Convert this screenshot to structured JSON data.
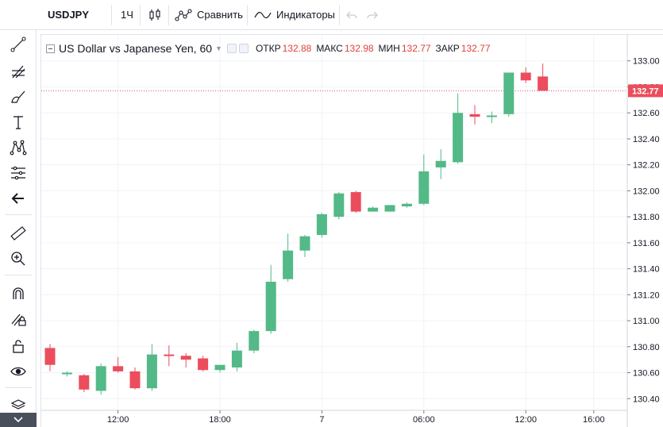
{
  "toolbar": {
    "symbol": "USDJPY",
    "interval": "1Ч",
    "compare_label": "Сравнить",
    "indicators_label": "Индикаторы"
  },
  "legend": {
    "title": "US Dollar vs Japanese Yen, 60",
    "open_label": "ОТКР",
    "open_value": "132.88",
    "high_label": "МАКС",
    "high_value": "132.98",
    "low_label": "МИН",
    "low_value": "132.77",
    "close_label": "ЗАКР",
    "close_value": "132.77"
  },
  "colors": {
    "up": "#53b987",
    "down": "#eb4d5c",
    "grid": "#f0f3fa",
    "axis_text": "#131722",
    "price_line": "#eb4d5c"
  },
  "left_tools": [
    "crosshair-icon",
    "trend-line-icon",
    "fib-icon",
    "brush-icon",
    "text-icon",
    "pattern-icon",
    "prediction-icon",
    "back-arrow-icon",
    "ruler-icon",
    "zoom-in-icon",
    "magnet-icon",
    "lock-drawing-icon",
    "lock-icon",
    "eye-icon",
    "layers-icon"
  ],
  "chart_data": {
    "type": "candlestick",
    "symbol": "USDJPY",
    "timeframe": "60",
    "y_ticks": [
      "133.00",
      "132.80",
      "132.60",
      "132.40",
      "132.20",
      "132.00",
      "131.80",
      "131.60",
      "131.40",
      "131.20",
      "131.00",
      "130.80",
      "130.60",
      "130.40"
    ],
    "y_tick_values": [
      133.0,
      132.8,
      132.6,
      132.4,
      132.2,
      132.0,
      131.8,
      131.6,
      131.4,
      131.2,
      131.0,
      130.8,
      130.6,
      130.4
    ],
    "x_ticks": [
      "12:00",
      "18:00",
      "7",
      "06:00",
      "12:00",
      "16:00"
    ],
    "x_tick_index": [
      4,
      10,
      16,
      22,
      28,
      32
    ],
    "ylim": [
      130.31,
      133.2
    ],
    "last_price": "132.77",
    "last_price_value": 132.77,
    "candles": [
      {
        "o": 130.79,
        "h": 130.82,
        "l": 130.61,
        "c": 130.66
      },
      {
        "o": 130.59,
        "h": 130.61,
        "l": 130.57,
        "c": 130.6
      },
      {
        "o": 130.58,
        "h": 130.59,
        "l": 130.45,
        "c": 130.47
      },
      {
        "o": 130.46,
        "h": 130.67,
        "l": 130.43,
        "c": 130.65
      },
      {
        "o": 130.65,
        "h": 130.72,
        "l": 130.6,
        "c": 130.61
      },
      {
        "o": 130.61,
        "h": 130.64,
        "l": 130.47,
        "c": 130.48
      },
      {
        "o": 130.48,
        "h": 130.82,
        "l": 130.46,
        "c": 130.74
      },
      {
        "o": 130.74,
        "h": 130.81,
        "l": 130.65,
        "c": 130.73
      },
      {
        "o": 130.73,
        "h": 130.75,
        "l": 130.64,
        "c": 130.7
      },
      {
        "o": 130.71,
        "h": 130.73,
        "l": 130.61,
        "c": 130.62
      },
      {
        "o": 130.62,
        "h": 130.66,
        "l": 130.6,
        "c": 130.66
      },
      {
        "o": 130.64,
        "h": 130.83,
        "l": 130.61,
        "c": 130.77
      },
      {
        "o": 130.77,
        "h": 130.93,
        "l": 130.75,
        "c": 130.92
      },
      {
        "o": 130.92,
        "h": 131.43,
        "l": 130.9,
        "c": 131.3
      },
      {
        "o": 131.32,
        "h": 131.67,
        "l": 131.3,
        "c": 131.54
      },
      {
        "o": 131.54,
        "h": 131.66,
        "l": 131.49,
        "c": 131.65
      },
      {
        "o": 131.66,
        "h": 131.83,
        "l": 131.64,
        "c": 131.82
      },
      {
        "o": 131.8,
        "h": 131.99,
        "l": 131.78,
        "c": 131.98
      },
      {
        "o": 131.99,
        "h": 132.0,
        "l": 131.83,
        "c": 131.84
      },
      {
        "o": 131.84,
        "h": 131.88,
        "l": 131.84,
        "c": 131.87
      },
      {
        "o": 131.84,
        "h": 131.89,
        "l": 131.84,
        "c": 131.89
      },
      {
        "o": 131.88,
        "h": 131.91,
        "l": 131.87,
        "c": 131.9
      },
      {
        "o": 131.9,
        "h": 132.28,
        "l": 131.89,
        "c": 132.15
      },
      {
        "o": 132.18,
        "h": 132.32,
        "l": 132.09,
        "c": 132.23
      },
      {
        "o": 132.22,
        "h": 132.75,
        "l": 132.21,
        "c": 132.6
      },
      {
        "o": 132.59,
        "h": 132.66,
        "l": 132.51,
        "c": 132.57
      },
      {
        "o": 132.57,
        "h": 132.61,
        "l": 132.52,
        "c": 132.58
      },
      {
        "o": 132.59,
        "h": 132.91,
        "l": 132.57,
        "c": 132.91
      },
      {
        "o": 132.91,
        "h": 132.95,
        "l": 132.83,
        "c": 132.85
      },
      {
        "o": 132.88,
        "h": 132.98,
        "l": 132.77,
        "c": 132.77
      }
    ]
  }
}
